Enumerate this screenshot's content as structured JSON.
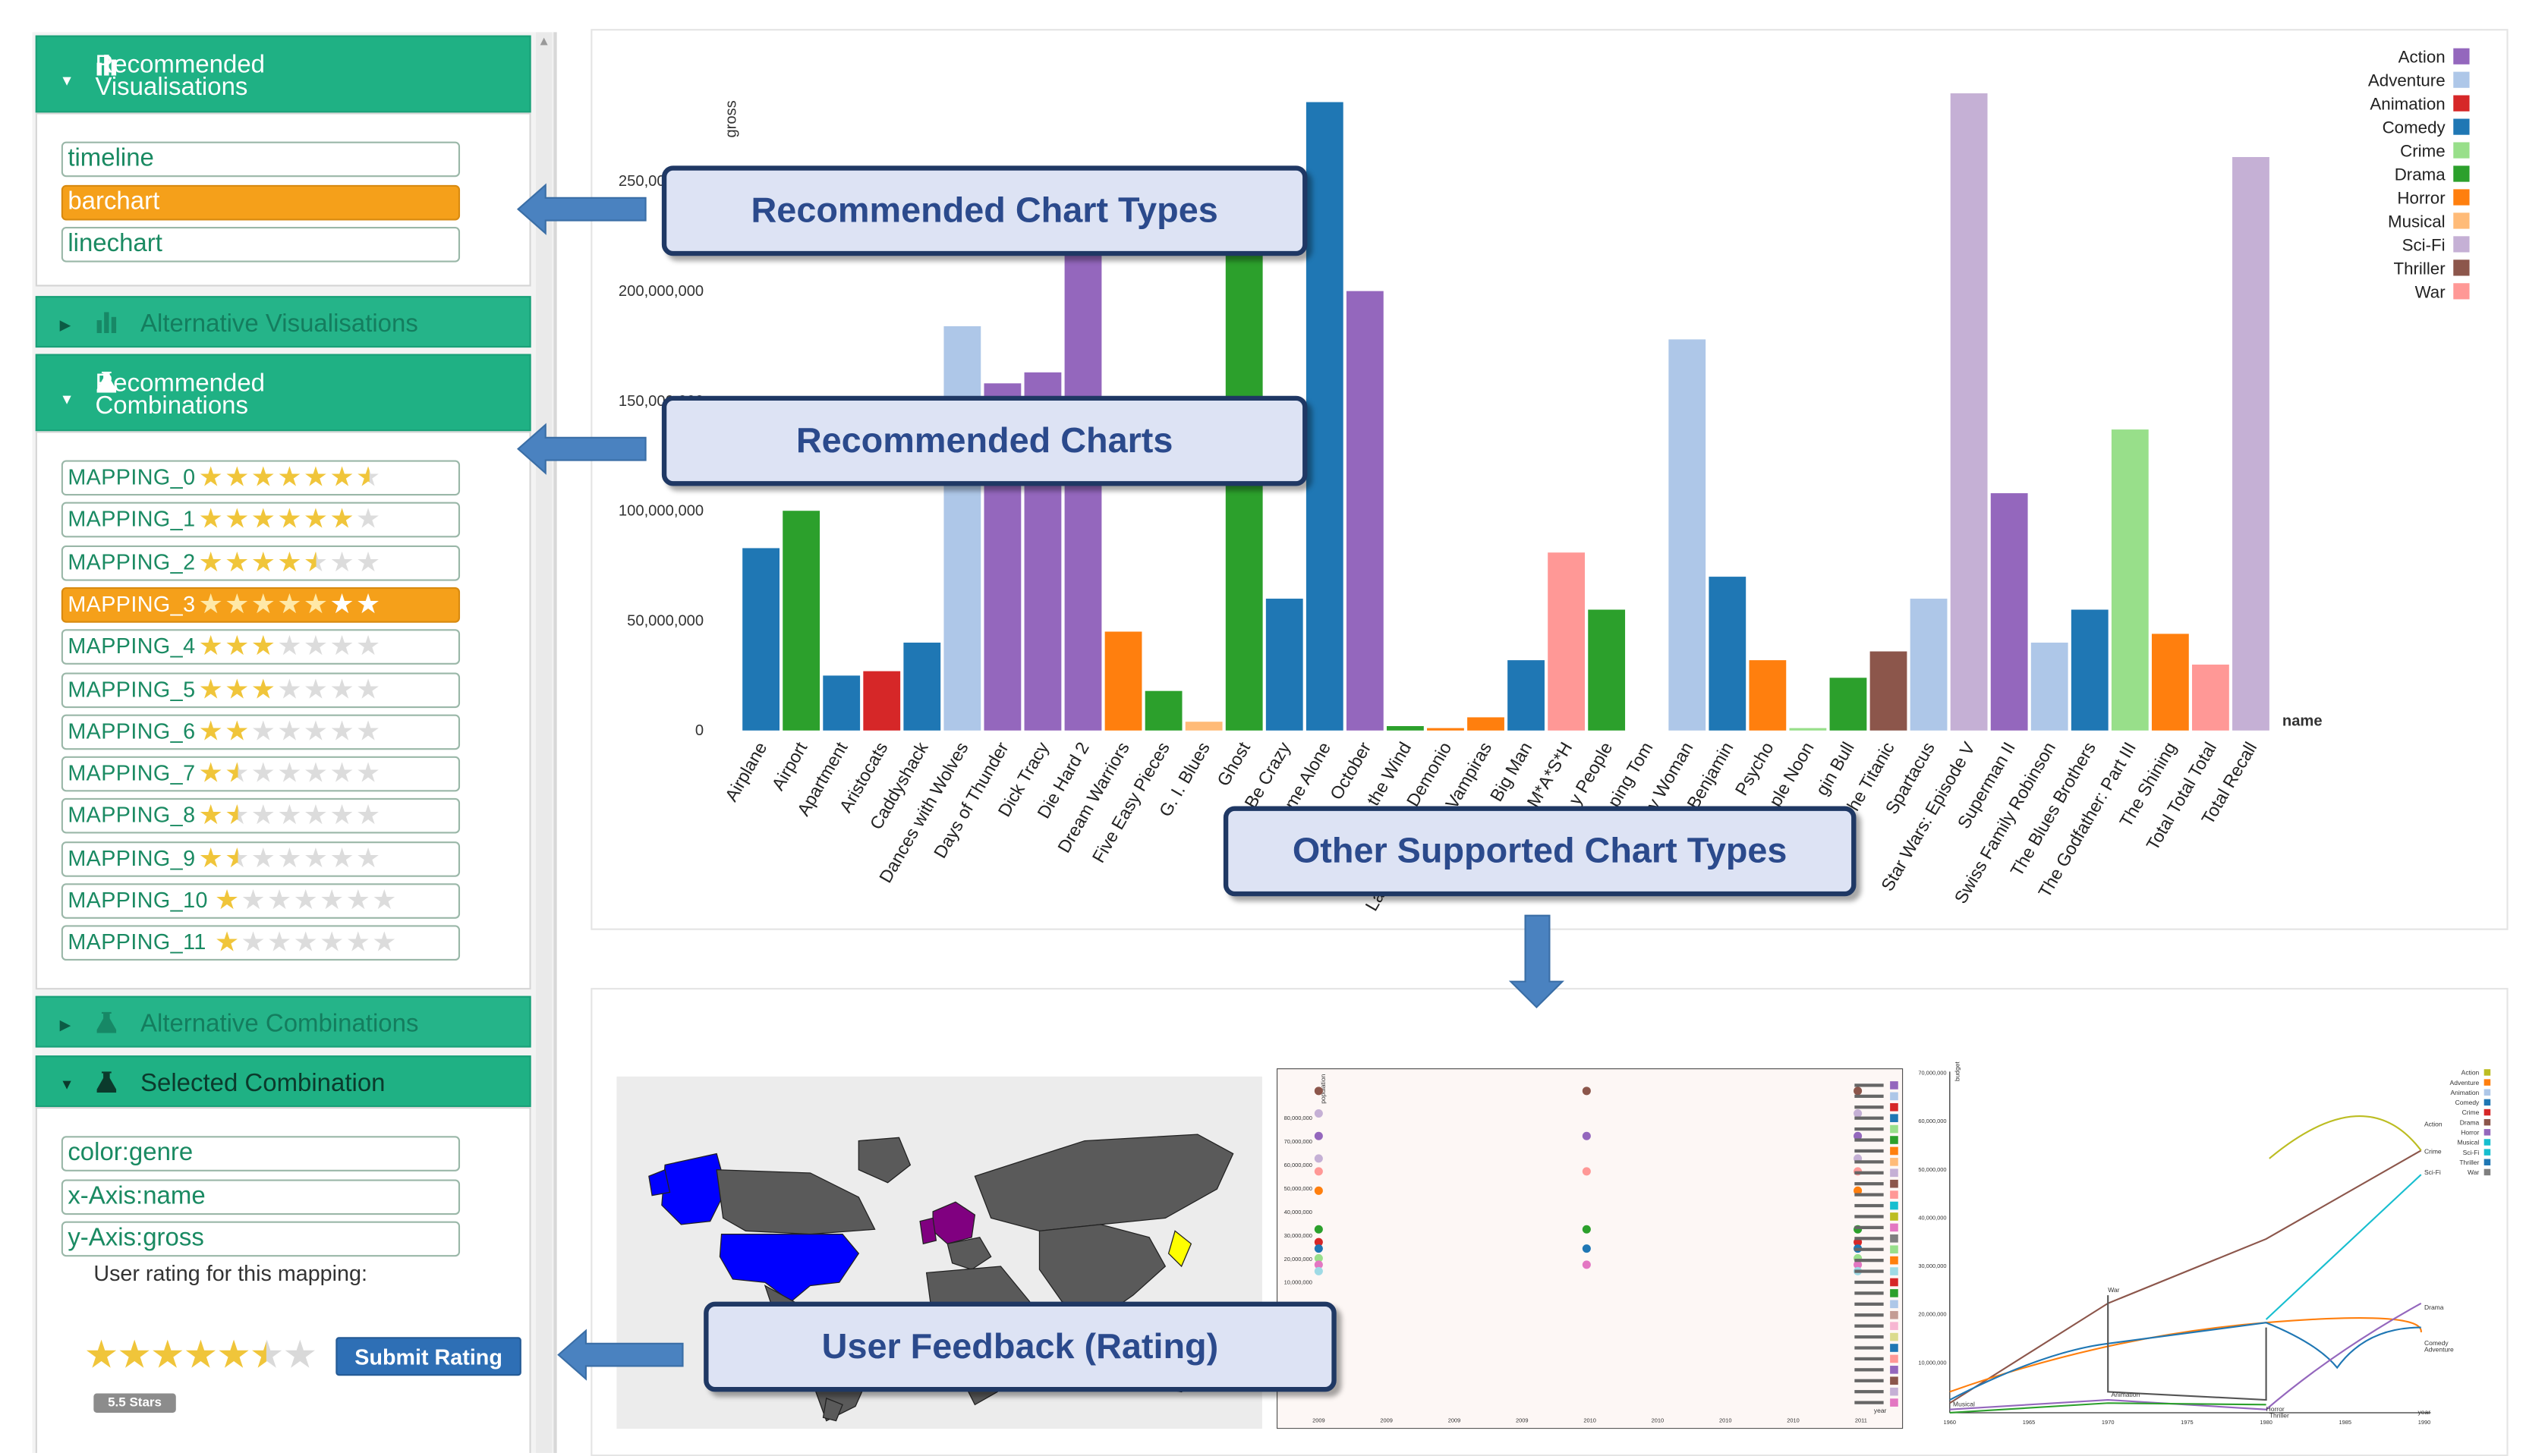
{
  "sidebar": {
    "recommended_visualisations": {
      "title": "Recommended Visualisations",
      "items": [
        "timeline",
        "barchart",
        "linechart"
      ],
      "active": "barchart"
    },
    "alternative_visualisations": {
      "title": "Alternative   Visualisations"
    },
    "recommended_combinations": {
      "title": "Recommended Combinations",
      "items": [
        {
          "label": "MAPPING_0",
          "rating": 6.5,
          "max": 7
        },
        {
          "label": "MAPPING_1",
          "rating": 6,
          "max": 7
        },
        {
          "label": "MAPPING_2",
          "rating": 4.5,
          "max": 7
        },
        {
          "label": "MAPPING_3",
          "rating": 5,
          "max": 7
        },
        {
          "label": "MAPPING_4",
          "rating": 3,
          "max": 7
        },
        {
          "label": "MAPPING_5",
          "rating": 3,
          "max": 7
        },
        {
          "label": "MAPPING_6",
          "rating": 2,
          "max": 7
        },
        {
          "label": "MAPPING_7",
          "rating": 1.5,
          "max": 7
        },
        {
          "label": "MAPPING_8",
          "rating": 1.5,
          "max": 7
        },
        {
          "label": "MAPPING_9",
          "rating": 1.5,
          "max": 7
        },
        {
          "label": "MAPPING_10",
          "rating": 1,
          "max": 7
        },
        {
          "label": "MAPPING_11",
          "rating": 1,
          "max": 7
        }
      ],
      "active": "MAPPING_3"
    },
    "alternative_combinations": {
      "title": "Alternative   Combinations"
    },
    "selected_combination": {
      "title": "Selected   Combination",
      "items": [
        "color:genre",
        "x-Axis:name",
        "y-Axis:gross"
      ],
      "rating_prompt": "User rating for this mapping:",
      "rating_value": 5.5,
      "rating_max": 7,
      "submit_label": "Submit Rating",
      "badge": "5.5 Stars"
    }
  },
  "callouts": {
    "chart_types": "Recommended Chart Types",
    "charts": "Recommended Charts",
    "other_types": "Other Supported Chart Types",
    "feedback": "User Feedback (Rating)"
  },
  "colors": {
    "header_green": "#1fb184",
    "active_orange": "#f5a01a",
    "submit_blue": "#2e6fb5",
    "callout_border": "#1f3864",
    "callout_fill": "#dde3f4"
  },
  "chart_data": {
    "type": "bar",
    "ylabel": "gross",
    "xlabel": "name",
    "ylim": [
      0,
      290000000
    ],
    "yticks": [
      "0",
      "50,000,000",
      "100,000,000",
      "150,000,000",
      "200,000,000",
      "250,000,000"
    ],
    "legend_position": "top-right",
    "genres": [
      {
        "name": "Action",
        "color": "#9467bd"
      },
      {
        "name": "Adventure",
        "color": "#aec7e8"
      },
      {
        "name": "Animation",
        "color": "#d62728"
      },
      {
        "name": "Comedy",
        "color": "#1f77b4"
      },
      {
        "name": "Crime",
        "color": "#98df8a"
      },
      {
        "name": "Drama",
        "color": "#2ca02c"
      },
      {
        "name": "Horror",
        "color": "#ff7f0e"
      },
      {
        "name": "Musical",
        "color": "#ffbb78"
      },
      {
        "name": "Sci-Fi",
        "color": "#c5b0d5"
      },
      {
        "name": "Thriller",
        "color": "#8c564b"
      },
      {
        "name": "War",
        "color": "#ff9896"
      }
    ],
    "bars": [
      {
        "name": "Airplane",
        "genre": "Comedy",
        "value": 83000000
      },
      {
        "name": "Airport",
        "genre": "Drama",
        "value": 100000000
      },
      {
        "name": "Apartment",
        "genre": "Comedy",
        "value": 25000000
      },
      {
        "name": "Aristocats",
        "genre": "Animation",
        "value": 27000000
      },
      {
        "name": "Caddyshack",
        "genre": "Comedy",
        "value": 40000000
      },
      {
        "name": "Dances with Wolves",
        "genre": "Adventure",
        "value": 184000000
      },
      {
        "name": "Days of Thunder",
        "genre": "Action",
        "value": 158000000
      },
      {
        "name": "Dick Tracy",
        "genre": "Action",
        "value": 163000000
      },
      {
        "name": "Die Hard 2",
        "genre": "Action",
        "value": 218000000
      },
      {
        "name": "Dream Warriors",
        "genre": "Horror",
        "value": 45000000
      },
      {
        "name": "Five Easy Pieces",
        "genre": "Drama",
        "value": 18000000
      },
      {
        "name": "G. I. Blues",
        "genre": "Musical",
        "value": 4000000
      },
      {
        "name": "Ghost",
        "genre": "Drama",
        "value": 218000000
      },
      {
        "name": "Be Crazy",
        "genre": "Comedy",
        "value": 60000000
      },
      {
        "name": "me Alone",
        "genre": "Comedy",
        "value": 286000000
      },
      {
        "name": "October",
        "genre": "Action",
        "value": 200000000
      },
      {
        "name": "the Wind",
        "genre": "Drama",
        "value": 2000000
      },
      {
        "name": "Demonio",
        "genre": "Horror",
        "value": 1000000
      },
      {
        "name": "Vampiras",
        "genre": "Horror",
        "value": 6000000
      },
      {
        "name": "Big Man",
        "genre": "Comedy",
        "value": 32000000
      },
      {
        "name": "M*A*S*H",
        "genre": "War",
        "value": 81000000
      },
      {
        "name": "y People",
        "genre": "Drama",
        "value": 55000000
      },
      {
        "name": "ping Tom",
        "genre": "Thriller",
        "value": 0
      },
      {
        "name": "y Woman",
        "genre": "Adventure",
        "value": 178000000
      },
      {
        "name": "Benjamin",
        "genre": "Comedy",
        "value": 70000000
      },
      {
        "name": "Psycho",
        "genre": "Horror",
        "value": 32000000
      },
      {
        "name": "ple Noon",
        "genre": "Crime",
        "value": 1000000
      },
      {
        "name": "gin Bull",
        "genre": "Drama",
        "value": 24000000
      },
      {
        "name": "he Titanic",
        "genre": "Thriller",
        "value": 36000000
      },
      {
        "name": "Spartacus",
        "genre": "Adventure",
        "value": 60000000
      },
      {
        "name": "Star Wars: Episode V",
        "genre": "Sci-Fi",
        "value": 290000000
      },
      {
        "name": "Superman II",
        "genre": "Action",
        "value": 108000000
      },
      {
        "name": "Swiss Family Robinson",
        "genre": "Adventure",
        "value": 40000000
      },
      {
        "name": "The Blues Brothers",
        "genre": "Comedy",
        "value": 55000000
      },
      {
        "name": "The Godfather: Part III",
        "genre": "Crime",
        "value": 137000000
      },
      {
        "name": "The Shining",
        "genre": "Horror",
        "value": 44000000
      },
      {
        "name": "Total Total Total",
        "genre": "War",
        "value": 30000000
      },
      {
        "name": "Total Recall",
        "genre": "Sci-Fi",
        "value": 261000000
      }
    ],
    "stray_labels": [
      "La"
    ]
  },
  "thumbnails": {
    "scatter_yticks": [
      "80,000,000",
      "70,000,000",
      "60,000,000",
      "50,000,000",
      "40,000,000",
      "30,000,000",
      "20,000,000",
      "10,000,000"
    ],
    "scatter_xticks": [
      "2009",
      "2009",
      "2009",
      "2009",
      "2010",
      "2010",
      "2010",
      "2010",
      "2011"
    ],
    "scatter_ylabel": "population",
    "scatter_xlabel": "year",
    "line_yticks": [
      "70,000,000",
      "60,000,000",
      "50,000,000",
      "40,000,000",
      "30,000,000",
      "20,000,000",
      "10,000,000"
    ],
    "line_xticks": [
      "1960",
      "1965",
      "1970",
      "1975",
      "1980",
      "1985",
      "1990"
    ],
    "line_ylabel": "budget",
    "line_xlabel": "year",
    "line_legend": [
      "Action",
      "Adventure",
      "Animation",
      "Comedy",
      "Crime",
      "Drama",
      "Horror",
      "Musical",
      "Sci-Fi",
      "Thriller",
      "War"
    ],
    "line_labels": [
      "Action",
      "Crime",
      "Sci-Fi",
      "Drama",
      "Comedy",
      "Adventure",
      "War",
      "Animation",
      "Horror",
      "Thriller",
      "Musical"
    ]
  }
}
